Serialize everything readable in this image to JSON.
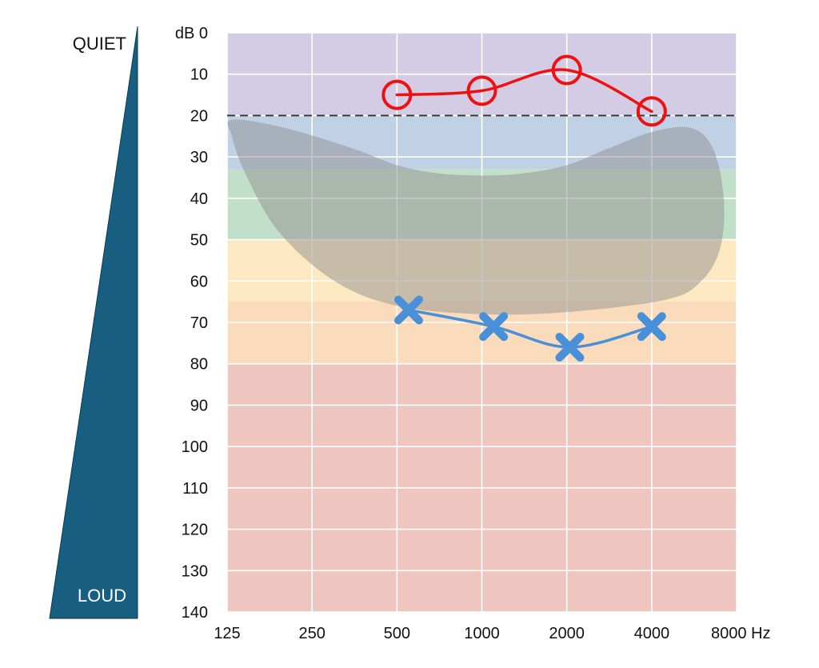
{
  "chart_data": {
    "type": "line",
    "title": "",
    "xlabel": "",
    "ylabel": "",
    "x_scale": "log2",
    "x_ticks": [
      125,
      250,
      500,
      1000,
      2000,
      4000,
      8000
    ],
    "x_tick_labels": [
      "125",
      "250",
      "500",
      "1000",
      "2000",
      "4000",
      "8000 Hz"
    ],
    "y_ticks": [
      0,
      10,
      20,
      30,
      40,
      50,
      60,
      70,
      80,
      90,
      100,
      110,
      120,
      130,
      140
    ],
    "y_tick_labels": [
      "dB 0",
      "10",
      "20",
      "30",
      "40",
      "50",
      "60",
      "70",
      "80",
      "90",
      "100",
      "110",
      "120",
      "130",
      "140"
    ],
    "xlim": [
      125,
      8000
    ],
    "ylim": [
      0,
      140
    ],
    "y_inverted": true,
    "grid": true,
    "reference_line": {
      "y": 20,
      "style": "dashed",
      "color": "#333333"
    },
    "bands": [
      {
        "y0": 0,
        "y1": 20,
        "color": "#d4cbe4"
      },
      {
        "y0": 20,
        "y1": 33,
        "color": "#c0d1e6"
      },
      {
        "y0": 33,
        "y1": 50,
        "color": "#c2dfc9"
      },
      {
        "y0": 50,
        "y1": 65,
        "color": "#fde9c1"
      },
      {
        "y0": 65,
        "y1": 80,
        "color": "#fadcbc"
      },
      {
        "y0": 80,
        "y1": 140,
        "color": "#efc6bf"
      }
    ],
    "speech_banana": {
      "color": "#8f8f8f",
      "opacity": 0.5,
      "outline": [
        [
          130,
          21
        ],
        [
          200,
          23
        ],
        [
          350,
          28
        ],
        [
          500,
          32
        ],
        [
          700,
          34
        ],
        [
          1000,
          34.5
        ],
        [
          1400,
          34
        ],
        [
          2000,
          32
        ],
        [
          2800,
          28
        ],
        [
          4000,
          24
        ],
        [
          5500,
          23
        ],
        [
          6600,
          28
        ],
        [
          7200,
          40
        ],
        [
          7000,
          52
        ],
        [
          6000,
          60
        ],
        [
          4500,
          64.5
        ],
        [
          2000,
          67.5
        ],
        [
          1000,
          68
        ],
        [
          500,
          66
        ],
        [
          300,
          60
        ],
        [
          190,
          48
        ],
        [
          145,
          34
        ],
        [
          130,
          25
        ]
      ]
    },
    "series": [
      {
        "marker": "circle",
        "color": "#ee1111",
        "x": [
          500,
          1000,
          2000,
          4000
        ],
        "y": [
          15,
          14,
          9,
          19
        ]
      },
      {
        "marker": "x",
        "color": "#4a90d9",
        "x": [
          550,
          1100,
          2050,
          4000
        ],
        "y": [
          67,
          71,
          76,
          71
        ]
      }
    ],
    "loudness_scale": {
      "top_label": "QUIET",
      "bottom_label": "LOUD",
      "color": "#175e80"
    }
  }
}
